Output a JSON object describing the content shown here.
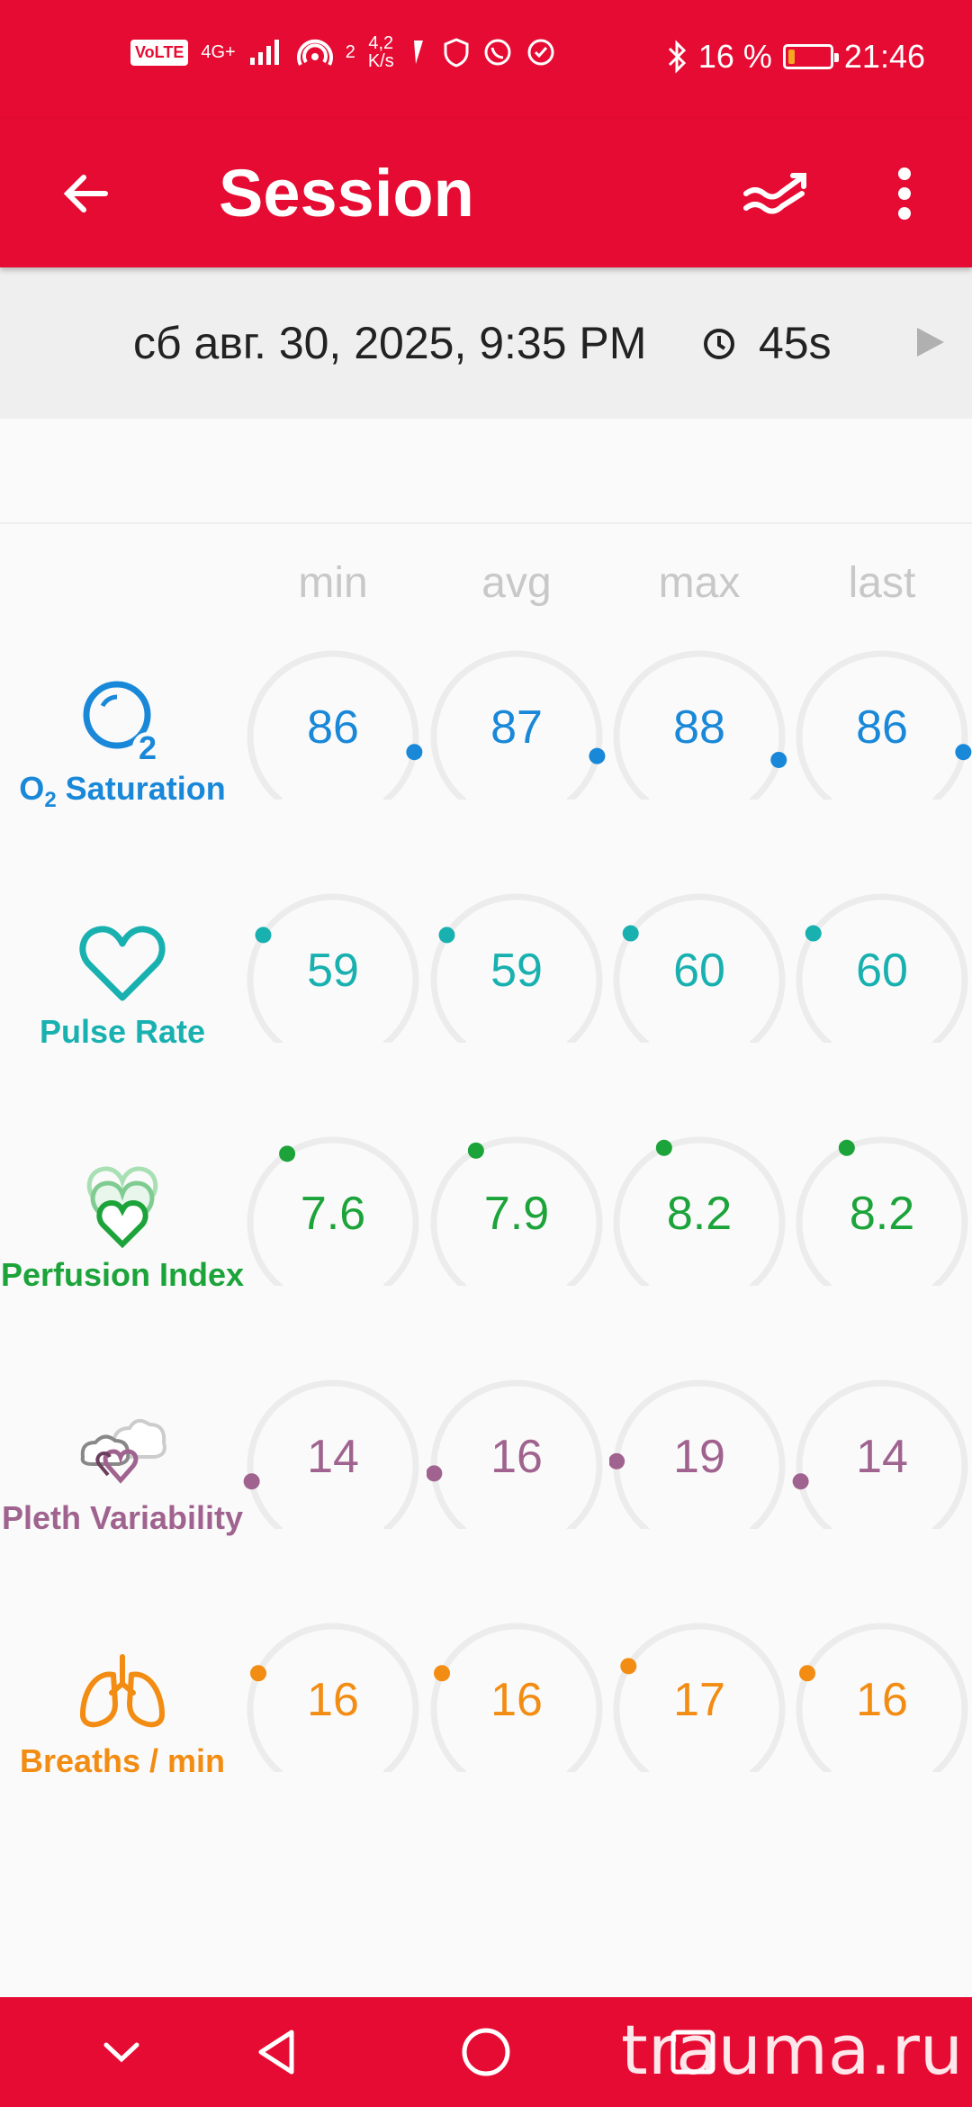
{
  "status_bar": {
    "volte": "VoLTE",
    "network": "4G+",
    "hotspot_count": "2",
    "speed_value": "4,2",
    "speed_unit": "K/s",
    "battery_percent": "16 %",
    "battery_level": 0.16,
    "time": "21:46"
  },
  "app_bar": {
    "title": "Session",
    "icons": [
      "arrow-back-icon",
      "trend-icon",
      "more-vert-icon"
    ]
  },
  "session": {
    "date": "сб авг. 30, 2025, 9:35 PM",
    "duration": "45s"
  },
  "columns": [
    "min",
    "avg",
    "max",
    "last"
  ],
  "metrics": [
    {
      "id": "spo2",
      "label_main": "O",
      "label_sub": "2",
      "label_rest": " Saturation",
      "color": "#1a88d8",
      "icon": "o2-icon",
      "values": [
        "86",
        "87",
        "88",
        "86"
      ],
      "fractions": [
        0.86,
        0.87,
        0.88,
        0.86
      ]
    },
    {
      "id": "pulse",
      "label": "Pulse Rate",
      "color": "#19b0b0",
      "icon": "heart-icon",
      "values": [
        "59",
        "59",
        "60",
        "60"
      ],
      "fractions": [
        0.295,
        0.295,
        0.3,
        0.3
      ]
    },
    {
      "id": "perfusion",
      "label": "Perfusion Index",
      "color": "#1ca33a",
      "icon": "perfusion-icon",
      "values": [
        "7.6",
        "7.9",
        "8.2",
        "8.2"
      ],
      "fractions": [
        0.38,
        0.395,
        0.41,
        0.41
      ]
    },
    {
      "id": "pleth",
      "label": "Pleth Variability",
      "color": "#a0638f",
      "icon": "pleth-icon",
      "values": [
        "14",
        "16",
        "19",
        "14"
      ],
      "fractions": [
        0.14,
        0.16,
        0.19,
        0.14
      ]
    },
    {
      "id": "breaths",
      "label": "Breaths / min",
      "color": "#f28c12",
      "icon": "lungs-icon",
      "values": [
        "16",
        "16",
        "17",
        "16"
      ],
      "fractions": [
        0.27,
        0.27,
        0.29,
        0.27
      ]
    }
  ],
  "nav_bar": {
    "icons": [
      "chevron-down-icon",
      "nav-back-icon",
      "nav-home-icon",
      "nav-recents-icon"
    ],
    "watermark": "trauma.ru"
  }
}
